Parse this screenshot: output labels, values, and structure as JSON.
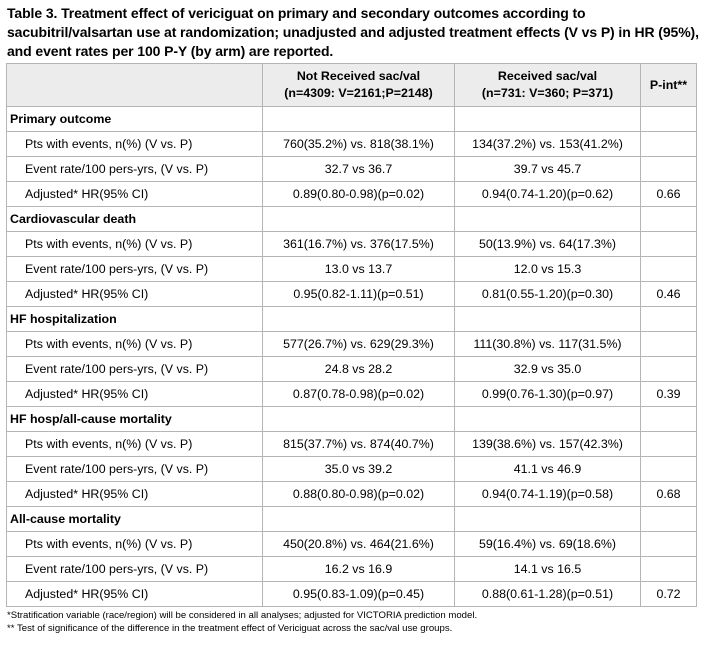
{
  "title": "Table 3. Treatment effect of vericiguat on primary and secondary outcomes according to sacubitril/valsartan use at randomization; unadjusted and adjusted treatment effects (V vs P) in HR (95%), and event rates per 100 P-Y (by arm) are reported.",
  "header": {
    "not_received_line1": "Not Received sac/val",
    "not_received_line2": "(n=4309: V=2161;P=2148)",
    "received_line1": "Received sac/val",
    "received_line2": "(n=731: V=360; P=371)",
    "p_int": "P-int**"
  },
  "sections": [
    {
      "name": "Primary outcome",
      "rows": [
        {
          "label": "Pts with events, n(%) (V vs. P)",
          "not_received": "760(35.2%) vs. 818(38.1%)",
          "received": "134(37.2%) vs. 153(41.2%)",
          "p_int": ""
        },
        {
          "label": "Event rate/100 pers-yrs, (V vs. P)",
          "not_received": "32.7 vs 36.7",
          "received": "39.7 vs 45.7",
          "p_int": ""
        },
        {
          "label": "Adjusted* HR(95% CI)",
          "not_received": "0.89(0.80-0.98)(p=0.02)",
          "received": "0.94(0.74-1.20)(p=0.62)",
          "p_int": "0.66"
        }
      ]
    },
    {
      "name": "Cardiovascular death",
      "rows": [
        {
          "label": "Pts with events, n(%) (V vs. P)",
          "not_received": "361(16.7%) vs. 376(17.5%)",
          "received": "50(13.9%) vs. 64(17.3%)",
          "p_int": ""
        },
        {
          "label": "Event rate/100 pers-yrs, (V vs. P)",
          "not_received": "13.0 vs 13.7",
          "received": "12.0 vs 15.3",
          "p_int": ""
        },
        {
          "label": "Adjusted* HR(95% CI)",
          "not_received": "0.95(0.82-1.11)(p=0.51)",
          "received": "0.81(0.55-1.20)(p=0.30)",
          "p_int": "0.46"
        }
      ]
    },
    {
      "name": "HF hospitalization",
      "rows": [
        {
          "label": "Pts with events, n(%) (V vs. P)",
          "not_received": "577(26.7%) vs. 629(29.3%)",
          "received": "111(30.8%) vs. 117(31.5%)",
          "p_int": ""
        },
        {
          "label": "Event rate/100 pers-yrs, (V vs. P)",
          "not_received": "24.8 vs 28.2",
          "received": "32.9 vs 35.0",
          "p_int": ""
        },
        {
          "label": "Adjusted* HR(95% CI)",
          "not_received": "0.87(0.78-0.98)(p=0.02)",
          "received": "0.99(0.76-1.30)(p=0.97)",
          "p_int": "0.39"
        }
      ]
    },
    {
      "name": "HF hosp/all-cause mortality",
      "rows": [
        {
          "label": "Pts with events, n(%) (V vs. P)",
          "not_received": "815(37.7%) vs. 874(40.7%)",
          "received": "139(38.6%) vs. 157(42.3%)",
          "p_int": ""
        },
        {
          "label": "Event rate/100 pers-yrs, (V vs. P)",
          "not_received": "35.0 vs 39.2",
          "received": "41.1 vs 46.9",
          "p_int": ""
        },
        {
          "label": "Adjusted* HR(95% CI)",
          "not_received": "0.88(0.80-0.98)(p=0.02)",
          "received": "0.94(0.74-1.19)(p=0.58)",
          "p_int": "0.68"
        }
      ]
    },
    {
      "name": "All-cause mortality",
      "rows": [
        {
          "label": "Pts with events, n(%) (V vs. P)",
          "not_received": "450(20.8%) vs. 464(21.6%)",
          "received": "59(16.4%) vs. 69(18.6%)",
          "p_int": ""
        },
        {
          "label": "Event rate/100 pers-yrs, (V vs. P)",
          "not_received": "16.2 vs 16.9",
          "received": "14.1 vs 16.5",
          "p_int": ""
        },
        {
          "label": "Adjusted* HR(95% CI)",
          "not_received": "0.95(0.83-1.09)(p=0.45)",
          "received": "0.88(0.61-1.28)(p=0.51)",
          "p_int": "0.72"
        }
      ]
    }
  ],
  "footnotes": [
    "*Stratification variable (race/region) will be considered in all analyses; adjusted for VICTORIA prediction model.",
    "** Test of significance of the difference in the treatment effect of Vericiguat across the sac/val use groups."
  ],
  "colors": {
    "header_bg": "#ececec",
    "border": "#b5b5b5"
  }
}
